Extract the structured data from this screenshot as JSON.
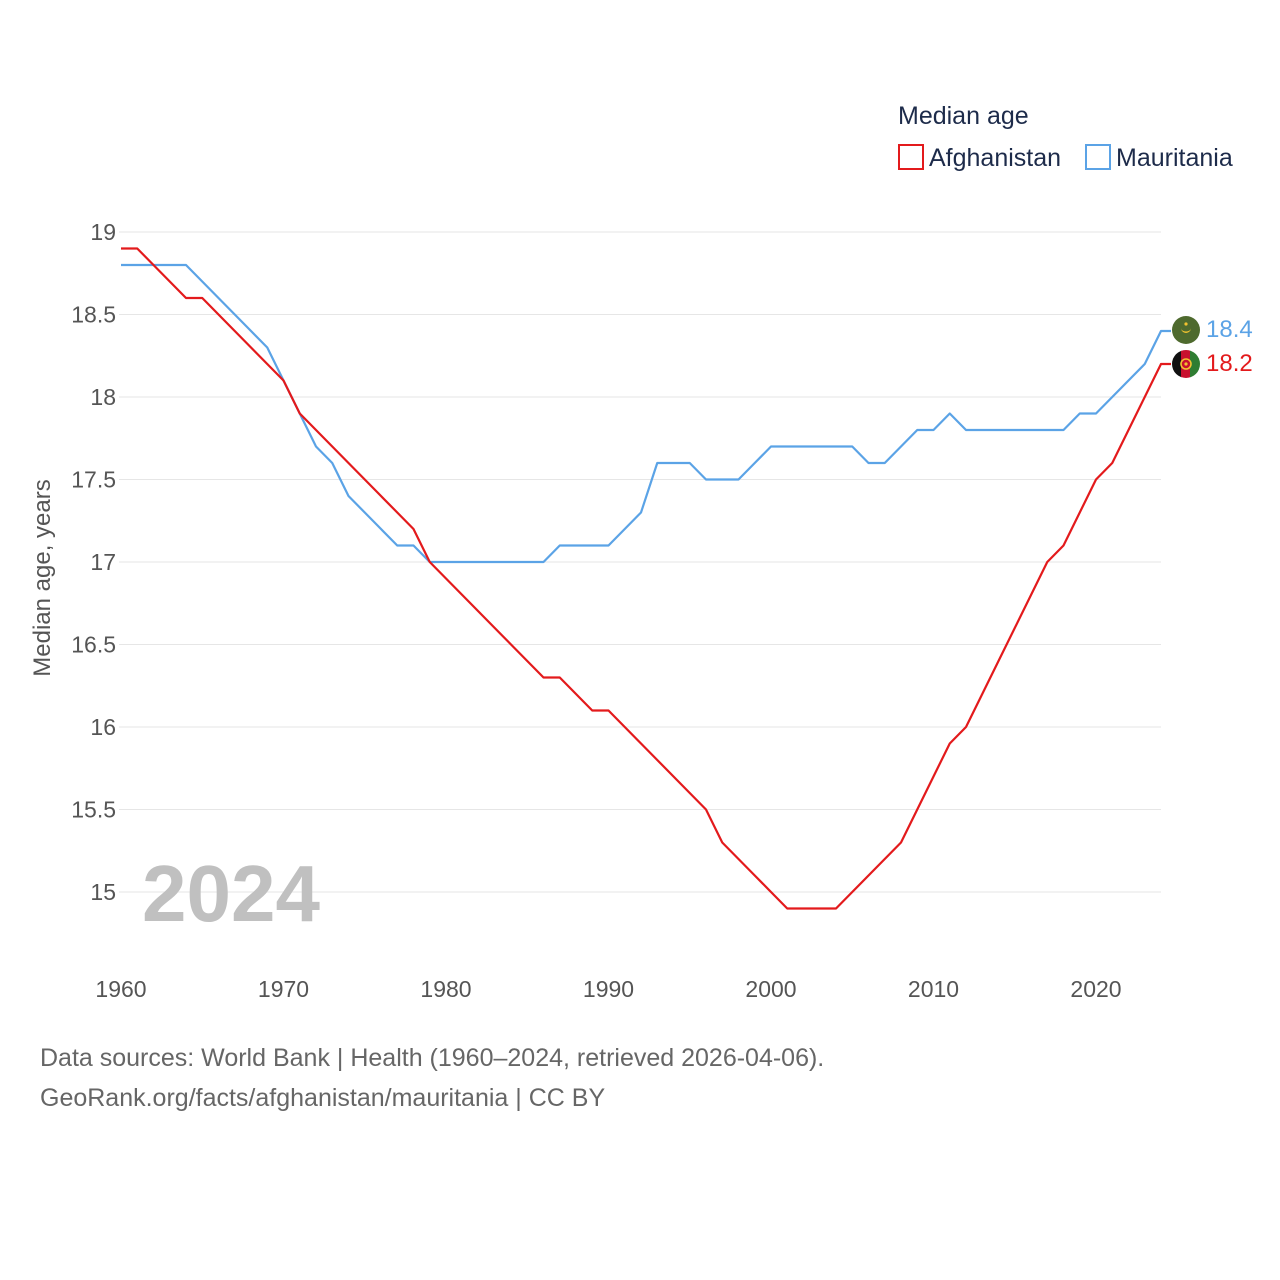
{
  "chart_data": {
    "type": "line",
    "title": "Median age",
    "ylabel": "Median age, years",
    "xlabel": "",
    "xlim": [
      1960,
      2024
    ],
    "ylim": [
      14.5,
      19.2
    ],
    "xticks": [
      "1960",
      "1970",
      "1980",
      "1990",
      "2000",
      "2010",
      "2020"
    ],
    "yticks": [
      "19",
      "18.5",
      "18",
      "17.5",
      "17",
      "16.5",
      "16",
      "15.5",
      "15"
    ],
    "grid": true,
    "legend_position": "top-right",
    "current_year_label": "2024",
    "x": [
      1960,
      1961,
      1962,
      1963,
      1964,
      1965,
      1966,
      1967,
      1968,
      1969,
      1970,
      1971,
      1972,
      1973,
      1974,
      1975,
      1976,
      1977,
      1978,
      1979,
      1980,
      1981,
      1982,
      1983,
      1984,
      1985,
      1986,
      1987,
      1988,
      1989,
      1990,
      1991,
      1992,
      1993,
      1994,
      1995,
      1996,
      1997,
      1998,
      1999,
      2000,
      2001,
      2002,
      2003,
      2004,
      2005,
      2006,
      2007,
      2008,
      2009,
      2010,
      2011,
      2012,
      2013,
      2014,
      2015,
      2016,
      2017,
      2018,
      2019,
      2020,
      2021,
      2022,
      2023,
      2024
    ],
    "series": [
      {
        "name": "Afghanistan",
        "color": "#e31a1c",
        "end_label": "18.2",
        "flag": "afghanistan-flag",
        "values": [
          18.9,
          18.9,
          18.8,
          18.7,
          18.6,
          18.6,
          18.5,
          18.4,
          18.3,
          18.2,
          18.1,
          17.9,
          17.8,
          17.7,
          17.6,
          17.5,
          17.4,
          17.3,
          17.2,
          17.0,
          16.9,
          16.8,
          16.7,
          16.6,
          16.5,
          16.4,
          16.3,
          16.3,
          16.2,
          16.1,
          16.1,
          16.0,
          15.9,
          15.8,
          15.7,
          15.6,
          15.5,
          15.3,
          15.2,
          15.1,
          15.0,
          14.9,
          14.9,
          14.9,
          14.9,
          15.0,
          15.1,
          15.2,
          15.3,
          15.5,
          15.7,
          15.9,
          16.0,
          16.2,
          16.4,
          16.6,
          16.8,
          17.0,
          17.1,
          17.3,
          17.5,
          17.6,
          17.8,
          18.0,
          18.2
        ]
      },
      {
        "name": "Mauritania",
        "color": "#5ba3e6",
        "end_label": "18.4",
        "flag": "mauritania-flag",
        "values": [
          18.8,
          18.8,
          18.8,
          18.8,
          18.8,
          18.7,
          18.6,
          18.5,
          18.4,
          18.3,
          18.1,
          17.9,
          17.7,
          17.6,
          17.4,
          17.3,
          17.2,
          17.1,
          17.1,
          17.0,
          17.0,
          17.0,
          17.0,
          17.0,
          17.0,
          17.0,
          17.0,
          17.1,
          17.1,
          17.1,
          17.1,
          17.2,
          17.3,
          17.6,
          17.6,
          17.6,
          17.5,
          17.5,
          17.5,
          17.6,
          17.7,
          17.7,
          17.7,
          17.7,
          17.7,
          17.7,
          17.6,
          17.6,
          17.7,
          17.8,
          17.8,
          17.9,
          17.8,
          17.8,
          17.8,
          17.8,
          17.8,
          17.8,
          17.8,
          17.9,
          17.9,
          18.0,
          18.1,
          18.2,
          18.4
        ]
      }
    ]
  },
  "footer": {
    "line1": "Data sources: World Bank | Health (1960–2024, retrieved 2026-04-06).",
    "line2": "GeoRank.org/facts/afghanistan/mauritania | CC BY"
  }
}
